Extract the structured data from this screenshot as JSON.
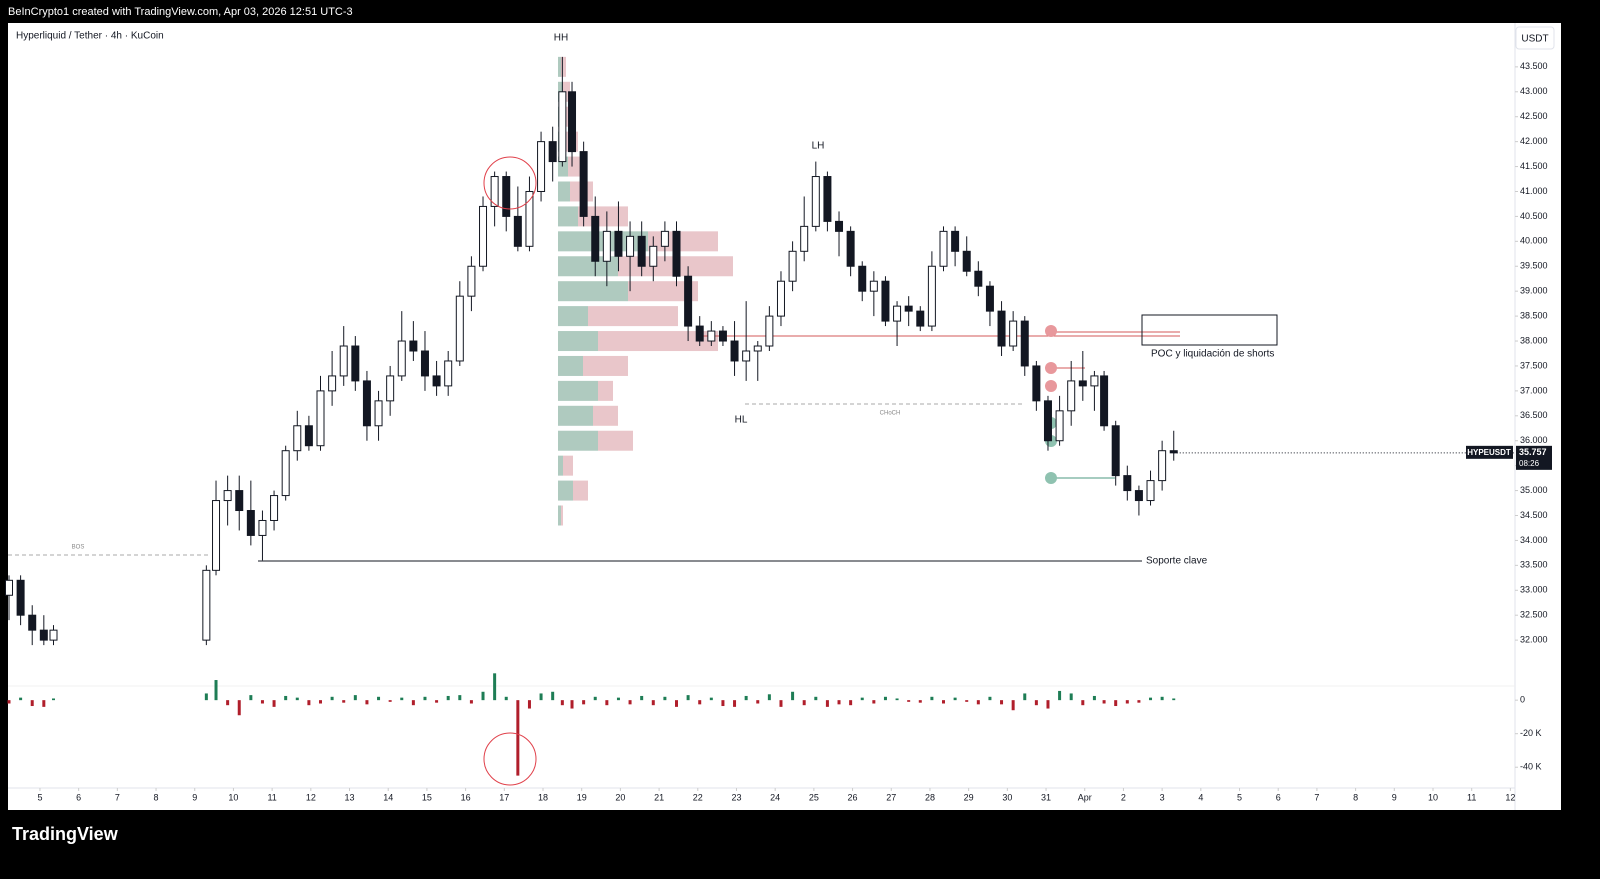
{
  "header": "BeInCrypto1 created with TradingView.com, Apr 03, 2026 12:51 UTC-3",
  "footer_brand": "TradingView",
  "chart_data": [
    {
      "type": "candlestick",
      "title": "Hyperliquid / Tether · 4h · KuCoin",
      "currency": "USDT",
      "symbol": "HYPEUSDT",
      "countdown": "08:26",
      "annotations": [
        "HH",
        "LH",
        "HL",
        "CHoCH",
        "BOS",
        "Soporte clave",
        "POC y liquidación de shorts"
      ],
      "xlim": [
        -0.8,
        38.3
      ],
      "xticks": [
        {
          "value": 0,
          "label": "5"
        },
        {
          "value": 1,
          "label": "6"
        },
        {
          "value": 2,
          "label": "7"
        },
        {
          "value": 3,
          "label": "8"
        },
        {
          "value": 4,
          "label": "9"
        },
        {
          "value": 5,
          "label": "10"
        },
        {
          "value": 6,
          "label": "11"
        },
        {
          "value": 7,
          "label": "12"
        },
        {
          "value": 8,
          "label": "13"
        },
        {
          "value": 9,
          "label": "14"
        },
        {
          "value": 10,
          "label": "15"
        },
        {
          "value": 11,
          "label": "16"
        },
        {
          "value": 12,
          "label": "17"
        },
        {
          "value": 13,
          "label": "18"
        },
        {
          "value": 14,
          "label": "19"
        },
        {
          "value": 15,
          "label": "20"
        },
        {
          "value": 16,
          "label": "21"
        },
        {
          "value": 17,
          "label": "22"
        },
        {
          "value": 18,
          "label": "23"
        },
        {
          "value": 19,
          "label": "24"
        },
        {
          "value": 20,
          "label": "25"
        },
        {
          "value": 21,
          "label": "26"
        },
        {
          "value": 22,
          "label": "27"
        },
        {
          "value": 23,
          "label": "28"
        },
        {
          "value": 24,
          "label": "29"
        },
        {
          "value": 25,
          "label": "30"
        },
        {
          "value": 26,
          "label": "31"
        },
        {
          "value": 27,
          "label": "Apr"
        },
        {
          "value": 28,
          "label": "2"
        },
        {
          "value": 29,
          "label": "3"
        },
        {
          "value": 30,
          "label": "4"
        },
        {
          "value": 31,
          "label": "5"
        },
        {
          "value": 32,
          "label": "6"
        },
        {
          "value": 33,
          "label": "7"
        },
        {
          "value": 34,
          "label": "8"
        },
        {
          "value": 35,
          "label": "9"
        },
        {
          "value": 36,
          "label": "10"
        },
        {
          "value": 37,
          "label": "11"
        },
        {
          "value": 38,
          "label": "12"
        }
      ],
      "ylim": [
        31.2,
        44.4
      ],
      "yticks": [
        {
          "value": 32,
          "label": "32.000"
        },
        {
          "value": 32.5,
          "label": "32.500"
        },
        {
          "value": 33,
          "label": "33.000"
        },
        {
          "value": 33.5,
          "label": "33.500"
        },
        {
          "value": 34,
          "label": "34.000"
        },
        {
          "value": 34.5,
          "label": "34.500"
        },
        {
          "value": 35,
          "label": "35.000"
        },
        {
          "value": 35.5,
          "label": "35.500"
        },
        {
          "value": 36,
          "label": "36.000"
        },
        {
          "value": 36.5,
          "label": "36.500"
        },
        {
          "value": 37,
          "label": "37.000"
        },
        {
          "value": 37.5,
          "label": "37.500"
        },
        {
          "value": 38,
          "label": "38.000"
        },
        {
          "value": 38.5,
          "label": "38.500"
        },
        {
          "value": 39,
          "label": "39.000"
        },
        {
          "value": 39.5,
          "label": "39.500"
        },
        {
          "value": 40,
          "label": "40.000"
        },
        {
          "value": 40.5,
          "label": "40.500"
        },
        {
          "value": 41,
          "label": "41.000"
        },
        {
          "value": 41.5,
          "label": "41.500"
        },
        {
          "value": 42,
          "label": "42.000"
        },
        {
          "value": 42.5,
          "label": "42.500"
        },
        {
          "value": 43,
          "label": "43.000"
        },
        {
          "value": 43.5,
          "label": "43.500"
        }
      ],
      "up_color": "#ffffff",
      "down_color": "#131722",
      "x": [
        -0.8,
        -0.5,
        -0.2,
        0.1,
        0.35,
        4.3,
        4.55,
        4.85,
        5.15,
        5.45,
        5.75,
        6.05,
        6.35,
        6.65,
        6.95,
        7.25,
        7.55,
        7.85,
        8.15,
        8.45,
        8.75,
        9.05,
        9.35,
        9.65,
        9.95,
        10.25,
        10.55,
        10.85,
        11.15,
        11.45,
        11.75,
        12.05,
        12.35,
        12.65,
        12.95,
        13.25,
        13.5,
        13.75,
        14.05,
        14.35,
        14.65,
        14.95,
        15.25,
        15.55,
        15.85,
        16.15,
        16.45,
        16.75,
        17.05,
        17.35,
        17.65,
        17.95,
        18.25,
        18.55,
        18.85,
        19.15,
        19.45,
        19.75,
        20.05,
        20.35,
        20.65,
        20.95,
        21.25,
        21.55,
        21.85,
        22.15,
        22.45,
        22.75,
        23.05,
        23.35,
        23.65,
        23.95,
        24.25,
        24.55,
        24.85,
        25.15,
        25.45,
        25.75,
        26.05,
        26.35,
        26.65,
        26.95,
        27.25,
        27.5,
        27.8,
        28.1,
        28.4,
        28.7,
        29.0,
        29.3
      ],
      "open": [
        32.9,
        33.2,
        32.5,
        32.2,
        32.0,
        32.0,
        33.4,
        34.8,
        35.0,
        34.6,
        34.1,
        34.4,
        34.9,
        35.8,
        36.3,
        35.9,
        37.0,
        37.3,
        37.9,
        37.2,
        36.3,
        36.8,
        37.3,
        38.0,
        37.8,
        37.3,
        37.1,
        37.6,
        38.9,
        39.5,
        40.7,
        41.3,
        40.5,
        39.9,
        41.0,
        42.0,
        41.6,
        43.0,
        41.8,
        40.5,
        39.6,
        40.2,
        39.7,
        40.1,
        39.5,
        39.9,
        40.2,
        39.3,
        38.3,
        38.0,
        38.2,
        38.0,
        37.6,
        37.8,
        37.9,
        38.5,
        39.2,
        39.8,
        40.3,
        41.3,
        40.4,
        40.2,
        39.5,
        39.0,
        39.2,
        38.4,
        38.7,
        38.6,
        38.3,
        39.5,
        40.2,
        39.8,
        39.4,
        39.1,
        38.6,
        37.9,
        38.4,
        37.5,
        36.8,
        36.0,
        36.6,
        37.2,
        37.1,
        37.3,
        36.3,
        35.3,
        35.0,
        34.8,
        35.2,
        35.8
      ],
      "high": [
        33.3,
        33.3,
        32.7,
        32.5,
        32.3,
        33.5,
        35.2,
        35.3,
        35.3,
        35.2,
        34.6,
        35.0,
        35.9,
        36.6,
        36.5,
        37.3,
        37.8,
        38.3,
        38.1,
        37.4,
        37.0,
        37.5,
        38.6,
        38.4,
        38.2,
        37.6,
        37.8,
        39.2,
        39.7,
        40.9,
        41.4,
        41.4,
        41.1,
        41.3,
        42.2,
        42.3,
        43.7,
        43.2,
        42.0,
        40.9,
        40.6,
        40.8,
        40.4,
        40.4,
        40.1,
        40.4,
        40.4,
        39.5,
        38.5,
        38.4,
        38.3,
        38.4,
        38.8,
        38.0,
        38.7,
        39.4,
        40.0,
        40.9,
        41.6,
        41.4,
        40.6,
        40.3,
        39.6,
        39.4,
        39.3,
        38.8,
        38.9,
        38.7,
        39.8,
        40.3,
        40.3,
        40.1,
        39.6,
        39.2,
        38.8,
        38.6,
        38.5,
        37.6,
        36.9,
        36.9,
        37.6,
        37.8,
        37.4,
        37.4,
        36.4,
        35.5,
        35.1,
        35.4,
        36.0,
        36.2
      ],
      "low": [
        32.4,
        32.3,
        31.9,
        31.9,
        31.9,
        31.9,
        33.3,
        34.3,
        34.2,
        33.9,
        33.6,
        34.2,
        34.8,
        35.6,
        35.8,
        35.8,
        36.7,
        37.1,
        37.0,
        36.0,
        36.0,
        36.5,
        37.2,
        37.6,
        37.0,
        36.9,
        36.9,
        37.5,
        38.6,
        39.4,
        40.3,
        40.2,
        39.8,
        39.8,
        40.8,
        41.2,
        41.5,
        41.5,
        40.3,
        39.3,
        39.1,
        39.4,
        39.0,
        39.3,
        39.2,
        39.6,
        39.1,
        38.0,
        37.9,
        37.9,
        37.9,
        37.3,
        37.2,
        37.2,
        37.8,
        38.3,
        39.0,
        39.6,
        40.2,
        40.2,
        39.7,
        39.3,
        38.8,
        38.5,
        38.3,
        37.9,
        38.3,
        38.2,
        38.2,
        39.4,
        39.5,
        39.3,
        38.9,
        38.3,
        37.7,
        37.8,
        37.3,
        36.6,
        35.8,
        35.9,
        36.3,
        36.8,
        36.6,
        36.2,
        35.1,
        34.8,
        34.5,
        34.7,
        35.0,
        35.6
      ],
      "close": [
        33.2,
        32.5,
        32.2,
        32.0,
        32.2,
        33.4,
        34.8,
        35.0,
        34.6,
        34.1,
        34.4,
        34.9,
        35.8,
        36.3,
        35.9,
        37.0,
        37.3,
        37.9,
        37.2,
        36.3,
        36.8,
        37.3,
        38.0,
        37.8,
        37.3,
        37.1,
        37.6,
        38.9,
        39.5,
        40.7,
        41.3,
        40.5,
        39.9,
        41.0,
        42.0,
        41.6,
        43.0,
        41.8,
        40.5,
        39.6,
        40.2,
        39.7,
        40.1,
        39.5,
        39.9,
        40.2,
        39.3,
        38.3,
        38.0,
        38.2,
        38.0,
        37.6,
        37.8,
        37.9,
        38.5,
        39.2,
        39.8,
        40.3,
        41.3,
        40.4,
        40.2,
        39.5,
        39.0,
        39.2,
        38.4,
        38.7,
        38.6,
        38.3,
        39.5,
        40.2,
        39.8,
        39.4,
        39.1,
        38.6,
        37.9,
        38.4,
        37.5,
        36.8,
        36.0,
        36.6,
        37.2,
        37.1,
        37.3,
        36.3,
        35.3,
        35.0,
        34.8,
        35.2,
        35.8,
        35.757
      ],
      "volume_profile": {
        "buy_color": "#4d8a72",
        "sell_color": "#b5424f",
        "prices": [
          43.5,
          43,
          42.5,
          42,
          41.5,
          41,
          40.5,
          40,
          39.5,
          39,
          38.5,
          38,
          37.5,
          37,
          36.5,
          36,
          35.5,
          35,
          34.5
        ],
        "buy": [
          3,
          5,
          6,
          8,
          10,
          12,
          20,
          90,
          60,
          70,
          30,
          40,
          25,
          40,
          35,
          40,
          5,
          15,
          3
        ],
        "sell": [
          5,
          7,
          9,
          12,
          15,
          23,
          50,
          70,
          115,
          70,
          90,
          120,
          45,
          15,
          25,
          35,
          10,
          15,
          2
        ]
      }
    },
    {
      "type": "bar",
      "ylim": [
        -50000,
        15000
      ],
      "yticks": [
        0,
        {
          "value": -20000,
          "label": "-20 K"
        },
        {
          "value": -40000,
          "label": "-40 K"
        }
      ],
      "up_color": "#1e7d55",
      "down_color": "#b01e2b",
      "values": [
        -2000,
        1500,
        -3500,
        -4000,
        1000,
        4000,
        12000,
        -3000,
        -9000,
        3000,
        -2000,
        -4000,
        2500,
        1500,
        -3000,
        -2000,
        2000,
        -1500,
        3000,
        -2500,
        2000,
        -1000,
        1500,
        -3000,
        2000,
        -1500,
        2500,
        3000,
        -2000,
        5000,
        16000,
        2000,
        -45000,
        -5000,
        4000,
        5000,
        -3000,
        -5000,
        -2500,
        2000,
        -3000,
        1500,
        -2500,
        2500,
        -3000,
        2000,
        -4000,
        3000,
        -2500,
        1500,
        -3500,
        -4000,
        2500,
        -2000,
        3500,
        -4000,
        5000,
        -3000,
        2000,
        -4000,
        -2500,
        -3000,
        1500,
        -2000,
        2000,
        1000,
        -1000,
        -1500,
        2000,
        -2000,
        1500,
        -1000,
        -2500,
        2000,
        -2500,
        -6000,
        4000,
        -3000,
        -5000,
        5500,
        4000,
        -3000,
        2500,
        -2000,
        -3500,
        -2000,
        -1500,
        1500,
        2000,
        1000
      ]
    }
  ]
}
